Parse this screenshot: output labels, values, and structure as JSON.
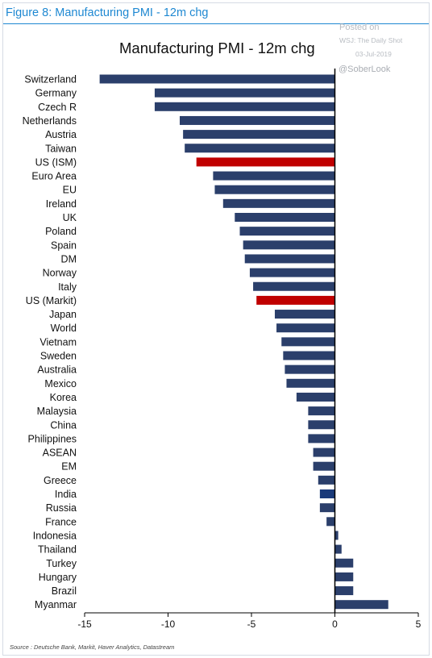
{
  "figure_label": "Figure 8: Manufacturing PMI - 12m chg",
  "watermark": {
    "posted": "Posted on",
    "source": "WSJ: The Daily Shot",
    "date": "03-Jul-2019",
    "handle": "@SoberLook"
  },
  "source_note": "Source : Deutsche Bank, Markit, Haver Analytics, Datastream",
  "colors": {
    "default_bar": "#2b3f6b",
    "highlight_bar": "#c00000",
    "india_bar": "#1a3a7a",
    "axis": "#000000"
  },
  "chart_data": {
    "type": "bar",
    "orientation": "horizontal",
    "title": "Manufacturing PMI - 12m chg",
    "xlim": [
      -15,
      5
    ],
    "xticks": [
      -15,
      -10,
      -5,
      0,
      5
    ],
    "grid": false,
    "categories": [
      "Switzerland",
      "Germany",
      "Czech R",
      "Netherlands",
      "Austria",
      "Taiwan",
      "US (ISM)",
      "Euro Area",
      "EU",
      "Ireland",
      "UK",
      "Poland",
      "Spain",
      "DM",
      "Norway",
      "Italy",
      "US (Markit)",
      "Japan",
      "World",
      "Vietnam",
      "Sweden",
      "Australia",
      "Mexico",
      "Korea",
      "Malaysia",
      "China",
      "Philippines",
      "ASEAN",
      "EM",
      "Greece",
      "India",
      "Russia",
      "France",
      "Indonesia",
      "Thailand",
      "Turkey",
      "Hungary",
      "Brazil",
      "Myanmar"
    ],
    "values": [
      -14.1,
      -10.8,
      -10.8,
      -9.3,
      -9.1,
      -9.0,
      -8.3,
      -7.3,
      -7.2,
      -6.7,
      -6.0,
      -5.7,
      -5.5,
      -5.4,
      -5.1,
      -4.9,
      -4.7,
      -3.6,
      -3.5,
      -3.2,
      -3.1,
      -3.0,
      -2.9,
      -2.3,
      -1.6,
      -1.6,
      -1.6,
      -1.3,
      -1.3,
      -1.0,
      -0.9,
      -0.9,
      -0.5,
      0.2,
      0.4,
      1.1,
      1.1,
      1.1,
      3.2
    ],
    "highlight": [
      "US (ISM)",
      "US (Markit)"
    ]
  }
}
